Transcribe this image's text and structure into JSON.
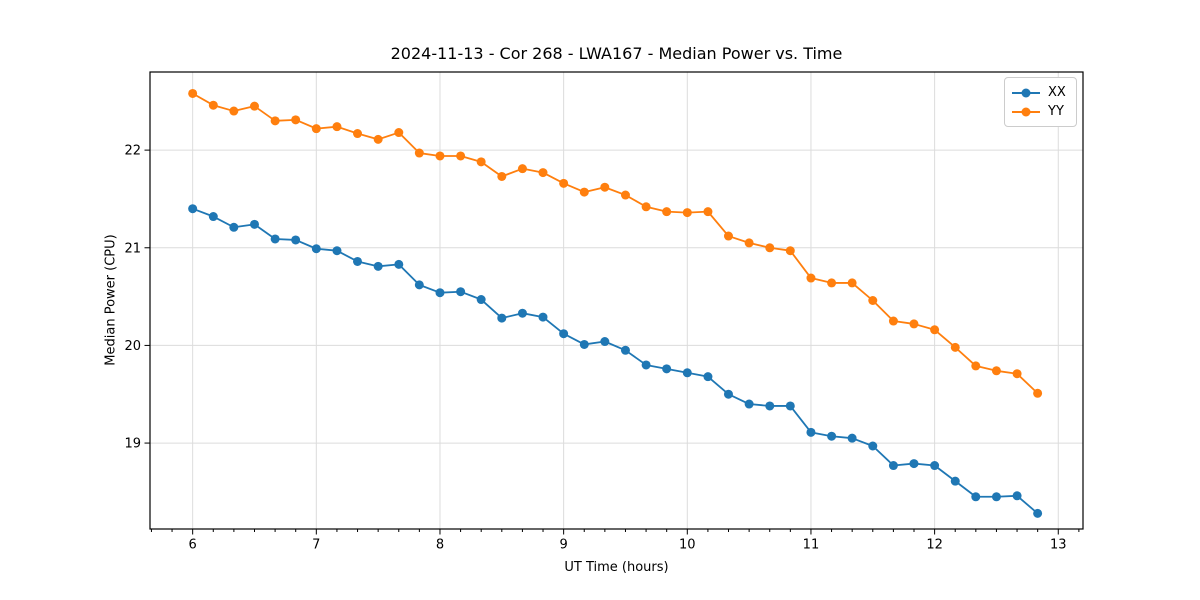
{
  "figure": {
    "background": "#ffffff"
  },
  "chart_data": {
    "type": "line",
    "title": "2024-11-13 - Cor 268 - LWA167 - Median Power vs. Time",
    "xlabel": "UT Time (hours)",
    "ylabel": "Median Power (CPU)",
    "x": [
      6.0,
      6.167,
      6.333,
      6.5,
      6.667,
      6.833,
      7.0,
      7.167,
      7.333,
      7.5,
      7.667,
      7.833,
      8.0,
      8.167,
      8.333,
      8.5,
      8.667,
      8.833,
      9.0,
      9.167,
      9.333,
      9.5,
      9.667,
      9.833,
      10.0,
      10.167,
      10.333,
      10.5,
      10.667,
      10.833,
      11.0,
      11.167,
      11.333,
      11.5,
      11.667,
      11.833,
      12.0,
      12.167,
      12.333,
      12.5,
      12.667,
      12.833
    ],
    "series": [
      {
        "name": "XX",
        "color": "#1f77b4",
        "values": [
          21.4,
          21.32,
          21.21,
          21.24,
          21.09,
          21.08,
          20.99,
          20.97,
          20.86,
          20.81,
          20.83,
          20.62,
          20.54,
          20.55,
          20.47,
          20.28,
          20.33,
          20.29,
          20.12,
          20.01,
          20.04,
          19.95,
          19.8,
          19.76,
          19.72,
          19.68,
          19.5,
          19.4,
          19.38,
          19.38,
          19.11,
          19.07,
          19.05,
          18.97,
          18.77,
          18.79,
          18.77,
          18.61,
          18.45,
          18.45,
          18.46,
          18.28
        ]
      },
      {
        "name": "YY",
        "color": "#ff7f0e",
        "values": [
          22.58,
          22.46,
          22.4,
          22.45,
          22.3,
          22.31,
          22.22,
          22.24,
          22.17,
          22.11,
          22.18,
          21.97,
          21.94,
          21.94,
          21.88,
          21.73,
          21.81,
          21.77,
          21.66,
          21.57,
          21.62,
          21.54,
          21.42,
          21.37,
          21.36,
          21.37,
          21.12,
          21.05,
          21.0,
          20.97,
          20.69,
          20.64,
          20.64,
          20.46,
          20.25,
          20.22,
          20.16,
          19.98,
          19.79,
          19.74,
          19.71,
          19.51
        ]
      }
    ],
    "xlim": [
      5.655,
      13.2
    ],
    "ylim": [
      18.12,
      22.8
    ],
    "xticks": [
      6,
      7,
      8,
      9,
      10,
      11,
      12,
      13
    ],
    "yticks": [
      19,
      20,
      21,
      22
    ],
    "x_minor_step": 0.1666667,
    "grid": "major",
    "grid_color": "#dcdcdc",
    "spine_color": "#000000",
    "legend_position": "upper right",
    "legend_labels": [
      "XX",
      "YY"
    ]
  }
}
